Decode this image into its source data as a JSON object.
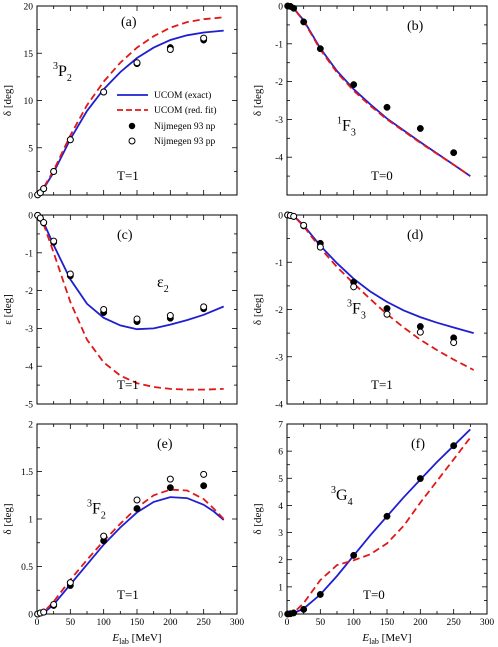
{
  "legend": {
    "items": [
      {
        "label": "UCOM (exact)",
        "style": "line",
        "color": "#1f1fd0"
      },
      {
        "label": "UCOM (red. fit)",
        "style": "dashed",
        "color": "#e01818"
      },
      {
        "label": "Nijmegen 93 np",
        "style": "filled"
      },
      {
        "label": "Nijmegen 93 pp",
        "style": "open"
      }
    ]
  },
  "chart_data": [
    {
      "type": "line",
      "id": "a",
      "panel_label": "(a)",
      "wave_sup": "3",
      "wave_main": "P",
      "wave_sub": "2",
      "t_label": "T=1",
      "ylabel": "δ [deg]",
      "xlabel": "",
      "xlim": [
        0,
        300
      ],
      "ylim": [
        0,
        20
      ],
      "xticks": [
        0,
        50,
        100,
        150,
        200,
        250,
        300
      ],
      "xticklabels": [],
      "yticks": [
        0,
        5,
        10,
        15,
        20
      ],
      "yticklabels": [
        "0",
        "5",
        "10",
        "15",
        "20"
      ],
      "series": [
        {
          "name": "UCOM (exact)",
          "style": "solid",
          "color": "#1f1fd0",
          "x": [
            0,
            10,
            25,
            50,
            75,
            100,
            125,
            150,
            175,
            200,
            225,
            250,
            280
          ],
          "y": [
            0,
            0.7,
            2.4,
            5.9,
            8.9,
            11.2,
            13.0,
            14.5,
            15.6,
            16.4,
            16.9,
            17.2,
            17.4
          ]
        },
        {
          "name": "UCOM (red. fit)",
          "style": "dashed",
          "color": "#e01818",
          "x": [
            0,
            10,
            25,
            50,
            75,
            100,
            125,
            150,
            175,
            200,
            225,
            250,
            280
          ],
          "y": [
            0,
            0.8,
            2.6,
            6.3,
            9.5,
            12.0,
            14.0,
            15.6,
            16.8,
            17.7,
            18.3,
            18.6,
            18.8
          ]
        },
        {
          "name": "Nijmegen 93 np",
          "style": "filled",
          "x": [
            1,
            5,
            10,
            25,
            50,
            100,
            150,
            200,
            250
          ],
          "y": [
            0.02,
            0.24,
            0.67,
            2.49,
            5.85,
            10.9,
            13.9,
            15.6,
            16.4
          ]
        },
        {
          "name": "Nijmegen 93 pp",
          "style": "open",
          "x": [
            1,
            5,
            10,
            25,
            50,
            100,
            150,
            200,
            250
          ],
          "y": [
            0.02,
            0.24,
            0.67,
            2.49,
            5.85,
            10.9,
            14.0,
            15.4,
            16.6
          ]
        }
      ]
    },
    {
      "type": "line",
      "id": "b",
      "panel_label": "(b)",
      "wave_sup": "1",
      "wave_main": "F",
      "wave_sub": "3",
      "t_label": "T=0",
      "ylabel": "δ [deg]",
      "xlabel": "",
      "xlim": [
        0,
        300
      ],
      "ylim": [
        -5,
        0
      ],
      "xticks": [
        0,
        50,
        100,
        150,
        200,
        250,
        300
      ],
      "xticklabels": [],
      "yticks": [
        -5,
        -4,
        -3,
        -2,
        -1,
        0
      ],
      "yticklabels": [
        "",
        "-4",
        "-3",
        "-2",
        "-1",
        "0"
      ],
      "series": [
        {
          "name": "UCOM (exact)",
          "style": "solid",
          "color": "#1f1fd0",
          "x": [
            0,
            10,
            25,
            50,
            75,
            100,
            125,
            150,
            200,
            250,
            275
          ],
          "y": [
            0,
            -0.06,
            -0.38,
            -1.12,
            -1.72,
            -2.2,
            -2.6,
            -2.98,
            -3.6,
            -4.2,
            -4.5
          ]
        },
        {
          "name": "UCOM (red. fit)",
          "style": "dashed",
          "color": "#e01818",
          "x": [
            0,
            10,
            25,
            50,
            75,
            100,
            125,
            150,
            200,
            250,
            275
          ],
          "y": [
            0,
            -0.06,
            -0.4,
            -1.15,
            -1.76,
            -2.24,
            -2.64,
            -3.0,
            -3.62,
            -4.2,
            -4.5
          ]
        },
        {
          "name": "Nijmegen 93 np",
          "style": "filled",
          "x": [
            1,
            5,
            10,
            25,
            50,
            100,
            150,
            200,
            250
          ],
          "y": [
            0,
            -0.01,
            -0.06,
            -0.42,
            -1.13,
            -2.08,
            -2.68,
            -3.24,
            -3.88
          ]
        },
        {
          "name": "Nijmegen 93 pp",
          "style": "open",
          "x": [],
          "y": []
        }
      ]
    },
    {
      "type": "line",
      "id": "c",
      "panel_label": "(c)",
      "wave_sup": "",
      "wave_main": "ε",
      "wave_sub": "2",
      "t_label": "T=1",
      "ylabel": "ε [deg]",
      "xlabel": "",
      "xlim": [
        0,
        300
      ],
      "ylim": [
        -5,
        0
      ],
      "xticks": [
        0,
        50,
        100,
        150,
        200,
        250,
        300
      ],
      "xticklabels": [],
      "yticks": [
        -5,
        -4,
        -3,
        -2,
        -1,
        0
      ],
      "yticklabels": [
        "-5",
        "-4",
        "-3",
        "-2",
        "-1",
        "0"
      ],
      "series": [
        {
          "name": "UCOM (exact)",
          "style": "solid",
          "color": "#1f1fd0",
          "x": [
            0,
            10,
            25,
            50,
            75,
            100,
            125,
            150,
            175,
            200,
            225,
            250,
            280
          ],
          "y": [
            0,
            -0.2,
            -0.8,
            -1.7,
            -2.35,
            -2.72,
            -2.92,
            -3.02,
            -3.0,
            -2.9,
            -2.78,
            -2.64,
            -2.42
          ]
        },
        {
          "name": "UCOM (red. fit)",
          "style": "dashed",
          "color": "#e01818",
          "x": [
            0,
            10,
            25,
            50,
            75,
            100,
            125,
            150,
            175,
            200,
            225,
            250,
            280
          ],
          "y": [
            0,
            -0.25,
            -1.0,
            -2.3,
            -3.3,
            -3.9,
            -4.25,
            -4.45,
            -4.55,
            -4.6,
            -4.62,
            -4.62,
            -4.6
          ]
        },
        {
          "name": "Nijmegen 93 np",
          "style": "filled",
          "x": [
            1,
            5,
            10,
            25,
            50,
            100,
            150,
            200,
            250
          ],
          "y": [
            -0.01,
            -0.09,
            -0.21,
            -0.72,
            -1.61,
            -2.58,
            -2.82,
            -2.73,
            -2.48
          ]
        },
        {
          "name": "Nijmegen 93 pp",
          "style": "open",
          "x": [
            1,
            5,
            10,
            25,
            50,
            100,
            150,
            200,
            250
          ],
          "y": [
            -0.01,
            -0.08,
            -0.2,
            -0.69,
            -1.56,
            -2.5,
            -2.75,
            -2.66,
            -2.43
          ]
        }
      ]
    },
    {
      "type": "line",
      "id": "d",
      "panel_label": "(d)",
      "wave_sup": "3",
      "wave_main": "F",
      "wave_sub": "3",
      "t_label": "T=1",
      "ylabel": "δ [deg]",
      "xlabel": "",
      "xlim": [
        0,
        300
      ],
      "ylim": [
        -4,
        0
      ],
      "xticks": [
        0,
        50,
        100,
        150,
        200,
        250,
        300
      ],
      "xticklabels": [],
      "yticks": [
        -4,
        -3,
        -2,
        -1,
        0
      ],
      "yticklabels": [
        "-4",
        "-3",
        "-2",
        "-1",
        "0"
      ],
      "series": [
        {
          "name": "UCOM (exact)",
          "style": "solid",
          "color": "#1f1fd0",
          "x": [
            0,
            10,
            25,
            50,
            75,
            100,
            125,
            150,
            175,
            200,
            225,
            250,
            280
          ],
          "y": [
            0,
            -0.02,
            -0.22,
            -0.65,
            -1.02,
            -1.35,
            -1.62,
            -1.84,
            -2.02,
            -2.16,
            -2.28,
            -2.38,
            -2.5
          ]
        },
        {
          "name": "UCOM (red. fit)",
          "style": "dashed",
          "color": "#e01818",
          "x": [
            0,
            10,
            25,
            50,
            75,
            100,
            125,
            150,
            175,
            200,
            225,
            250,
            280
          ],
          "y": [
            0,
            -0.02,
            -0.24,
            -0.7,
            -1.1,
            -1.45,
            -1.78,
            -2.1,
            -2.38,
            -2.64,
            -2.86,
            -3.06,
            -3.28
          ]
        },
        {
          "name": "Nijmegen 93 np",
          "style": "filled",
          "x": [
            1,
            5,
            10,
            25,
            50,
            100,
            150,
            200,
            250
          ],
          "y": [
            0,
            -0.01,
            -0.03,
            -0.23,
            -0.6,
            -1.42,
            -1.98,
            -2.36,
            -2.6
          ]
        },
        {
          "name": "Nijmegen 93 pp",
          "style": "open",
          "x": [
            1,
            5,
            10,
            25,
            50,
            100,
            150,
            200,
            250
          ],
          "y": [
            0,
            -0.01,
            -0.03,
            -0.22,
            -0.68,
            -1.52,
            -2.1,
            -2.48,
            -2.7
          ]
        }
      ]
    },
    {
      "type": "line",
      "id": "e",
      "panel_label": "(e)",
      "wave_sup": "3",
      "wave_main": "F",
      "wave_sub": "2",
      "t_label": "T=1",
      "ylabel": "δ [deg]",
      "xlabel": "E_lab [MeV]",
      "xlim": [
        0,
        300
      ],
      "ylim": [
        0,
        2
      ],
      "xticks": [
        0,
        50,
        100,
        150,
        200,
        250,
        300
      ],
      "xticklabels": [
        "0",
        "50",
        "100",
        "150",
        "200",
        "250",
        "300"
      ],
      "yticks": [
        0,
        0.5,
        1,
        1.5,
        2
      ],
      "yticklabels": [
        "0",
        "0.5",
        "1",
        "1.5",
        "2"
      ],
      "series": [
        {
          "name": "UCOM (exact)",
          "style": "solid",
          "color": "#1f1fd0",
          "x": [
            0,
            10,
            25,
            50,
            75,
            100,
            125,
            150,
            175,
            200,
            225,
            250,
            265,
            280
          ],
          "y": [
            0,
            0.01,
            0.1,
            0.31,
            0.52,
            0.73,
            0.91,
            1.07,
            1.18,
            1.23,
            1.22,
            1.15,
            1.08,
            0.99
          ]
        },
        {
          "name": "UCOM (red. fit)",
          "style": "dashed",
          "color": "#e01818",
          "x": [
            0,
            10,
            25,
            50,
            75,
            100,
            125,
            150,
            175,
            200,
            225,
            250,
            265,
            280
          ],
          "y": [
            0,
            0.02,
            0.13,
            0.36,
            0.57,
            0.77,
            0.95,
            1.12,
            1.25,
            1.31,
            1.3,
            1.21,
            1.11,
            1.0
          ]
        },
        {
          "name": "Nijmegen 93 np",
          "style": "filled",
          "x": [
            1,
            5,
            10,
            25,
            50,
            100,
            150,
            200,
            250
          ],
          "y": [
            0,
            0.01,
            0.02,
            0.09,
            0.3,
            0.77,
            1.11,
            1.33,
            1.35
          ]
        },
        {
          "name": "Nijmegen 93 pp",
          "style": "open",
          "x": [
            1,
            5,
            10,
            25,
            50,
            100,
            150,
            200,
            250
          ],
          "y": [
            0,
            0.01,
            0.02,
            0.1,
            0.33,
            0.82,
            1.2,
            1.42,
            1.47
          ]
        }
      ]
    },
    {
      "type": "line",
      "id": "f",
      "panel_label": "(f)",
      "wave_sup": "3",
      "wave_main": "G",
      "wave_sub": "4",
      "t_label": "T=0",
      "ylabel": "δ [deg]",
      "xlabel": "E_lab [MeV]",
      "xlim": [
        0,
        300
      ],
      "ylim": [
        0,
        7
      ],
      "xticks": [
        0,
        50,
        100,
        150,
        200,
        250,
        300
      ],
      "xticklabels": [
        "0",
        "50",
        "100",
        "150",
        "200",
        "250",
        "300"
      ],
      "yticks": [
        0,
        1,
        2,
        3,
        4,
        5,
        6,
        7
      ],
      "yticklabels": [
        "0",
        "1",
        "2",
        "3",
        "4",
        "5",
        "6",
        "7"
      ],
      "series": [
        {
          "name": "UCOM (exact)",
          "style": "solid",
          "color": "#1f1fd0",
          "x": [
            0,
            10,
            25,
            50,
            75,
            100,
            125,
            150,
            175,
            200,
            225,
            250,
            275
          ],
          "y": [
            0,
            0.03,
            0.2,
            0.72,
            1.4,
            2.15,
            2.9,
            3.6,
            4.3,
            4.95,
            5.6,
            6.2,
            6.8
          ]
        },
        {
          "name": "UCOM (red. fit)",
          "style": "dashed",
          "color": "#e01818",
          "x": [
            0,
            10,
            25,
            50,
            75,
            100,
            125,
            150,
            175,
            200,
            225,
            250,
            275
          ],
          "y": [
            0,
            0.05,
            0.4,
            1.25,
            1.8,
            1.98,
            2.2,
            2.6,
            3.25,
            4.1,
            4.9,
            5.7,
            6.5
          ]
        },
        {
          "name": "Nijmegen 93 np",
          "style": "filled",
          "x": [
            1,
            5,
            10,
            25,
            50,
            100,
            150,
            200,
            250
          ],
          "y": [
            0,
            0.01,
            0.04,
            0.17,
            0.72,
            2.16,
            3.6,
            4.99,
            6.2
          ]
        },
        {
          "name": "Nijmegen 93 pp",
          "style": "open",
          "x": [],
          "y": []
        }
      ]
    }
  ]
}
